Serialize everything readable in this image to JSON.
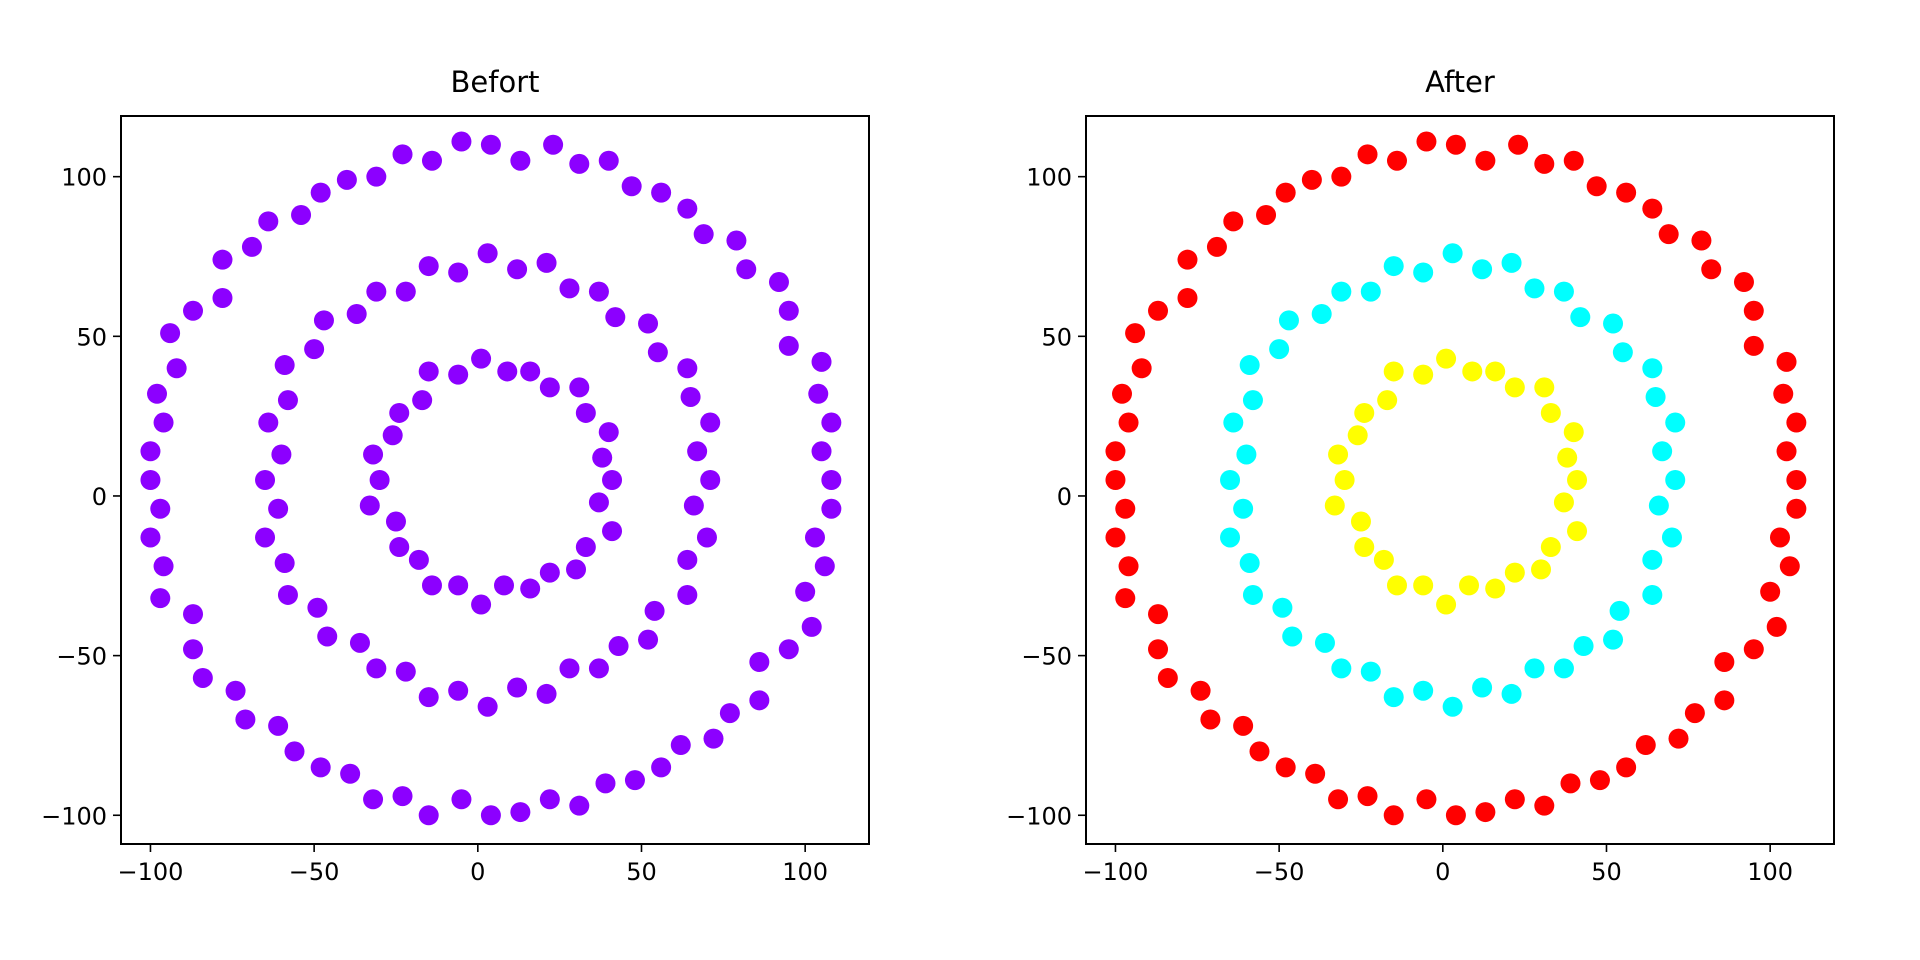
{
  "chart_data": {
    "type": "scatter",
    "xlim": [
      -109,
      119.5
    ],
    "ylim": [
      -109,
      119
    ],
    "xticks": [
      -100,
      -50,
      0,
      50,
      100
    ],
    "yticks": [
      -100,
      -50,
      0,
      50,
      100
    ],
    "xtick_labels": [
      "−100",
      "−50",
      "0",
      "50",
      "100"
    ],
    "ytick_labels": [
      "−100",
      "−50",
      "0",
      "50",
      "100"
    ],
    "grid": false,
    "subplots": [
      {
        "title": "Befort",
        "ring_colors": [
          "#8c00ff",
          "#8c00ff",
          "#8c00ff"
        ]
      },
      {
        "title": "After",
        "ring_colors": [
          "#ff0000",
          "#00ffff",
          "#ffff00"
        ]
      }
    ],
    "rings": [
      {
        "points": [
          [
            108,
            5
          ],
          [
            105,
            14
          ],
          [
            108,
            23
          ],
          [
            104,
            32
          ],
          [
            105,
            42
          ],
          [
            95,
            47
          ],
          [
            95,
            58
          ],
          [
            92,
            67
          ],
          [
            82,
            71
          ],
          [
            79,
            80
          ],
          [
            69,
            82
          ],
          [
            64,
            90
          ],
          [
            56,
            95
          ],
          [
            47,
            97
          ],
          [
            40,
            105
          ],
          [
            31,
            104
          ],
          [
            23,
            110
          ],
          [
            13,
            105
          ],
          [
            4,
            110
          ],
          [
            -5,
            111
          ],
          [
            -14,
            105
          ],
          [
            -23,
            107
          ],
          [
            -31,
            100
          ],
          [
            -40,
            99
          ],
          [
            -48,
            95
          ],
          [
            -54,
            88
          ],
          [
            -64,
            86
          ],
          [
            -69,
            78
          ],
          [
            -78,
            74
          ],
          [
            -78,
            62
          ],
          [
            -87,
            58
          ],
          [
            -94,
            51
          ],
          [
            -92,
            40
          ],
          [
            -98,
            32
          ],
          [
            -96,
            23
          ],
          [
            -100,
            14
          ],
          [
            -100,
            5
          ],
          [
            -97,
            -4
          ],
          [
            -100,
            -13
          ],
          [
            -96,
            -22
          ],
          [
            -97,
            -32
          ],
          [
            -87,
            -37
          ],
          [
            -87,
            -48
          ],
          [
            -84,
            -57
          ],
          [
            -74,
            -61
          ],
          [
            -71,
            -70
          ],
          [
            -61,
            -72
          ],
          [
            -56,
            -80
          ],
          [
            -48,
            -85
          ],
          [
            -39,
            -87
          ],
          [
            -32,
            -95
          ],
          [
            -23,
            -94
          ],
          [
            -15,
            -100
          ],
          [
            -5,
            -95
          ],
          [
            4,
            -100
          ],
          [
            13,
            -99
          ],
          [
            22,
            -95
          ],
          [
            31,
            -97
          ],
          [
            39,
            -90
          ],
          [
            48,
            -89
          ],
          [
            56,
            -85
          ],
          [
            62,
            -78
          ],
          [
            72,
            -76
          ],
          [
            77,
            -68
          ],
          [
            86,
            -64
          ],
          [
            86,
            -52
          ],
          [
            95,
            -48
          ],
          [
            102,
            -41
          ],
          [
            100,
            -30
          ],
          [
            106,
            -22
          ],
          [
            103,
            -13
          ],
          [
            108,
            -4
          ]
        ]
      },
      {
        "points": [
          [
            71,
            5
          ],
          [
            67,
            14
          ],
          [
            71,
            23
          ],
          [
            65,
            31
          ],
          [
            64,
            40
          ],
          [
            55,
            45
          ],
          [
            52,
            54
          ],
          [
            42,
            56
          ],
          [
            37,
            64
          ],
          [
            28,
            65
          ],
          [
            21,
            73
          ],
          [
            12,
            71
          ],
          [
            3,
            76
          ],
          [
            -6,
            70
          ],
          [
            -15,
            72
          ],
          [
            -22,
            64
          ],
          [
            -31,
            64
          ],
          [
            -37,
            57
          ],
          [
            -47,
            55
          ],
          [
            -50,
            46
          ],
          [
            -59,
            41
          ],
          [
            -58,
            30
          ],
          [
            -64,
            23
          ],
          [
            -60,
            13
          ],
          [
            -65,
            5
          ],
          [
            -61,
            -4
          ],
          [
            -65,
            -13
          ],
          [
            -59,
            -21
          ],
          [
            -58,
            -31
          ],
          [
            -49,
            -35
          ],
          [
            -46,
            -44
          ],
          [
            -36,
            -46
          ],
          [
            -31,
            -54
          ],
          [
            -22,
            -55
          ],
          [
            -15,
            -63
          ],
          [
            -6,
            -61
          ],
          [
            3,
            -66
          ],
          [
            12,
            -60
          ],
          [
            21,
            -62
          ],
          [
            28,
            -54
          ],
          [
            37,
            -54
          ],
          [
            43,
            -47
          ],
          [
            52,
            -45
          ],
          [
            54,
            -36
          ],
          [
            64,
            -31
          ],
          [
            64,
            -20
          ],
          [
            70,
            -13
          ],
          [
            66,
            -3
          ]
        ]
      },
      {
        "points": [
          [
            41,
            5
          ],
          [
            38,
            12
          ],
          [
            40,
            20
          ],
          [
            33,
            26
          ],
          [
            31,
            34
          ],
          [
            22,
            34
          ],
          [
            16,
            39
          ],
          [
            9,
            39
          ],
          [
            1,
            43
          ],
          [
            -6,
            38
          ],
          [
            -15,
            39
          ],
          [
            -17,
            30
          ],
          [
            -24,
            26
          ],
          [
            -26,
            19
          ],
          [
            -32,
            13
          ],
          [
            -30,
            5
          ],
          [
            -33,
            -3
          ],
          [
            -25,
            -8
          ],
          [
            -24,
            -16
          ],
          [
            -18,
            -20
          ],
          [
            -14,
            -28
          ],
          [
            -6,
            -28
          ],
          [
            1,
            -34
          ],
          [
            8,
            -28
          ],
          [
            16,
            -29
          ],
          [
            22,
            -24
          ],
          [
            30,
            -23
          ],
          [
            33,
            -16
          ],
          [
            41,
            -11
          ],
          [
            37,
            -2
          ]
        ]
      }
    ]
  }
}
